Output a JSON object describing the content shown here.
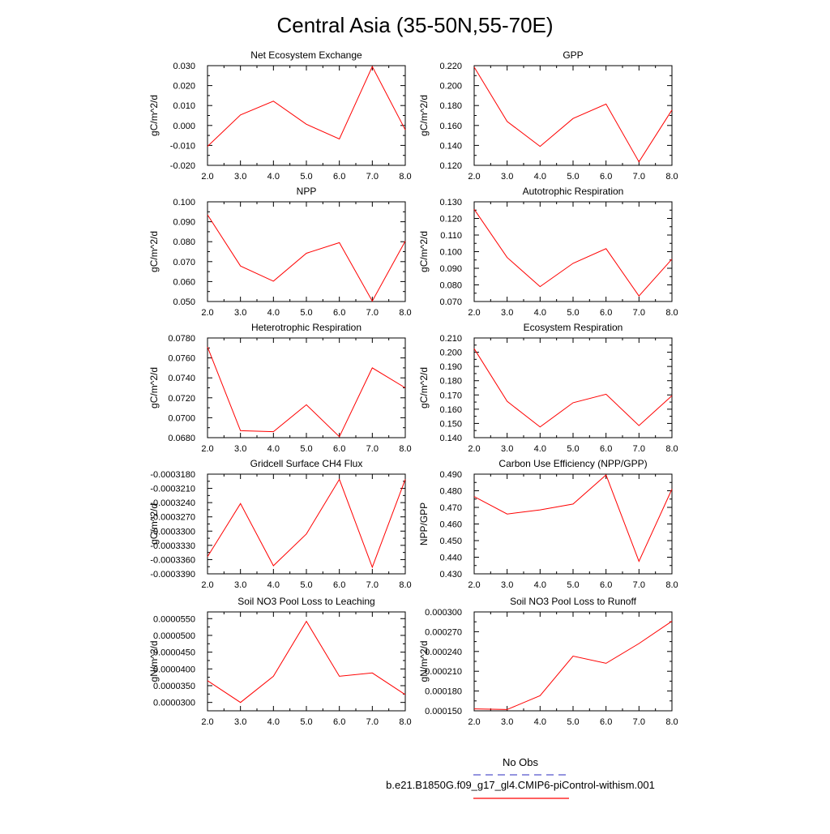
{
  "title": "Central Asia (35-50N,55-70E)",
  "colors": {
    "series": "#ff0000",
    "obs": "#5555cc",
    "axis": "#000000"
  },
  "legend": {
    "obs_label": "No Obs",
    "model_label": "b.e21.B1850G.f09_g17_gl4.CMIP6-piControl-withism.001"
  },
  "chart_data": [
    {
      "type": "line",
      "title": "Net Ecosystem Exchange",
      "ylabel": "gC/m^2/d",
      "x": [
        2.0,
        3.0,
        4.0,
        5.0,
        6.0,
        7.0,
        8.0
      ],
      "x_ticks": [
        "2.0",
        "3.0",
        "4.0",
        "5.0",
        "6.0",
        "7.0",
        "8.0"
      ],
      "xlim": [
        2.0,
        8.0
      ],
      "ylim": [
        -0.02,
        0.03
      ],
      "y_ticks": [
        -0.02,
        -0.01,
        0.0,
        0.01,
        0.02,
        0.03
      ],
      "y_tick_labels": [
        "-0.020",
        "-0.010",
        "0.000",
        "0.010",
        "0.020",
        "0.030"
      ],
      "values": [
        -0.0105,
        0.0053,
        0.0122,
        0.0006,
        -0.0068,
        0.0295,
        -0.0022
      ]
    },
    {
      "type": "line",
      "title": "GPP",
      "ylabel": "gC/m^2/d",
      "x": [
        2.0,
        3.0,
        4.0,
        5.0,
        6.0,
        7.0,
        8.0
      ],
      "x_ticks": [
        "2.0",
        "3.0",
        "4.0",
        "5.0",
        "6.0",
        "7.0",
        "8.0"
      ],
      "xlim": [
        2.0,
        8.0
      ],
      "ylim": [
        0.12,
        0.22
      ],
      "y_ticks": [
        0.12,
        0.14,
        0.16,
        0.18,
        0.2,
        0.22
      ],
      "y_tick_labels": [
        "0.120",
        "0.140",
        "0.160",
        "0.180",
        "0.200",
        "0.220"
      ],
      "values": [
        0.2185,
        0.164,
        0.139,
        0.167,
        0.1815,
        0.1235,
        0.1755
      ]
    },
    {
      "type": "line",
      "title": "NPP",
      "ylabel": "gC/m^2/d",
      "x": [
        2.0,
        3.0,
        4.0,
        5.0,
        6.0,
        7.0,
        8.0
      ],
      "x_ticks": [
        "2.0",
        "3.0",
        "4.0",
        "5.0",
        "6.0",
        "7.0",
        "8.0"
      ],
      "xlim": [
        2.0,
        8.0
      ],
      "ylim": [
        0.05,
        0.1
      ],
      "y_ticks": [
        0.05,
        0.06,
        0.07,
        0.08,
        0.09,
        0.1
      ],
      "y_tick_labels": [
        "0.050",
        "0.060",
        "0.070",
        "0.080",
        "0.090",
        "0.100"
      ],
      "values": [
        0.0935,
        0.0678,
        0.0602,
        0.0742,
        0.0795,
        0.0502,
        0.0803
      ]
    },
    {
      "type": "line",
      "title": "Autotrophic Respiration",
      "ylabel": "gC/m^2/d",
      "x": [
        2.0,
        3.0,
        4.0,
        5.0,
        6.0,
        7.0,
        8.0
      ],
      "x_ticks": [
        "2.0",
        "3.0",
        "4.0",
        "5.0",
        "6.0",
        "7.0",
        "8.0"
      ],
      "xlim": [
        2.0,
        8.0
      ],
      "ylim": [
        0.07,
        0.13
      ],
      "y_ticks": [
        0.07,
        0.08,
        0.09,
        0.1,
        0.11,
        0.12,
        0.13
      ],
      "y_tick_labels": [
        "0.070",
        "0.080",
        "0.090",
        "0.100",
        "0.110",
        "0.120",
        "0.130"
      ],
      "values": [
        0.1255,
        0.0965,
        0.079,
        0.093,
        0.1018,
        0.0733,
        0.0955
      ]
    },
    {
      "type": "line",
      "title": "Heterotrophic Respiration",
      "ylabel": "gC/m^2/d",
      "x": [
        2.0,
        3.0,
        4.0,
        5.0,
        6.0,
        7.0,
        8.0
      ],
      "x_ticks": [
        "2.0",
        "3.0",
        "4.0",
        "5.0",
        "6.0",
        "7.0",
        "8.0"
      ],
      "xlim": [
        2.0,
        8.0
      ],
      "ylim": [
        0.068,
        0.078
      ],
      "y_ticks": [
        0.068,
        0.07,
        0.072,
        0.074,
        0.076,
        0.078
      ],
      "y_tick_labels": [
        "0.0680",
        "0.0700",
        "0.0720",
        "0.0740",
        "0.0760",
        "0.0780"
      ],
      "values": [
        0.0771,
        0.0687,
        0.0686,
        0.0713,
        0.0681,
        0.075,
        0.073
      ]
    },
    {
      "type": "line",
      "title": "Ecosystem Respiration",
      "ylabel": "gC/m^2/d",
      "x": [
        2.0,
        3.0,
        4.0,
        5.0,
        6.0,
        7.0,
        8.0
      ],
      "x_ticks": [
        "2.0",
        "3.0",
        "4.0",
        "5.0",
        "6.0",
        "7.0",
        "8.0"
      ],
      "xlim": [
        2.0,
        8.0
      ],
      "ylim": [
        0.14,
        0.21
      ],
      "y_ticks": [
        0.14,
        0.15,
        0.16,
        0.17,
        0.18,
        0.19,
        0.2,
        0.21
      ],
      "y_tick_labels": [
        "0.140",
        "0.150",
        "0.160",
        "0.170",
        "0.180",
        "0.190",
        "0.200",
        "0.210"
      ],
      "values": [
        0.2025,
        0.1655,
        0.1475,
        0.1645,
        0.1705,
        0.1485,
        0.1695
      ]
    },
    {
      "type": "line",
      "title": "Gridcell Surface CH4 Flux",
      "ylabel": "gC/m^2/d",
      "x": [
        2.0,
        3.0,
        4.0,
        5.0,
        6.0,
        7.0,
        8.0
      ],
      "x_ticks": [
        "2.0",
        "3.0",
        "4.0",
        "5.0",
        "6.0",
        "7.0",
        "8.0"
      ],
      "xlim": [
        2.0,
        8.0
      ],
      "ylim": [
        -0.000339,
        -0.000318
      ],
      "y_ticks": [
        -0.000339,
        -0.000336,
        -0.000333,
        -0.00033,
        -0.000327,
        -0.000324,
        -0.000321,
        -0.000318
      ],
      "y_tick_labels": [
        "-0.0003390",
        "-0.0003360",
        "-0.0003330",
        "-0.0003300",
        "-0.0003270",
        "-0.0003240",
        "-0.0003210",
        "-0.0003180"
      ],
      "values": [
        -0.0003354,
        -0.0003242,
        -0.0003373,
        -0.0003306,
        -0.0003191,
        -0.0003376,
        -0.0003191
      ]
    },
    {
      "type": "line",
      "title": "Carbon Use Efficiency (NPP/GPP)",
      "ylabel": "NPP/GPP",
      "x": [
        2.0,
        3.0,
        4.0,
        5.0,
        6.0,
        7.0,
        8.0
      ],
      "x_ticks": [
        "2.0",
        "3.0",
        "4.0",
        "5.0",
        "6.0",
        "7.0",
        "8.0"
      ],
      "xlim": [
        2.0,
        8.0
      ],
      "ylim": [
        0.43,
        0.49
      ],
      "y_ticks": [
        0.43,
        0.44,
        0.45,
        0.46,
        0.47,
        0.48,
        0.49
      ],
      "y_tick_labels": [
        "0.430",
        "0.440",
        "0.450",
        "0.460",
        "0.470",
        "0.480",
        "0.490"
      ],
      "values": [
        0.4765,
        0.466,
        0.4685,
        0.472,
        0.4895,
        0.4375,
        0.481
      ]
    },
    {
      "type": "line",
      "title": "Soil NO3 Pool Loss to Leaching",
      "ylabel": "gN/m^2/d",
      "x": [
        2.0,
        3.0,
        4.0,
        5.0,
        6.0,
        7.0,
        8.0
      ],
      "x_ticks": [
        "2.0",
        "3.0",
        "4.0",
        "5.0",
        "6.0",
        "7.0",
        "8.0"
      ],
      "xlim": [
        2.0,
        8.0
      ],
      "ylim": [
        2.75e-05,
        5.7e-05
      ],
      "y_ticks": [
        3e-05,
        3.5e-05,
        4e-05,
        4.5e-05,
        5e-05,
        5.5e-05
      ],
      "y_tick_labels": [
        "0.0000300",
        "0.0000350",
        "0.0000400",
        "0.0000450",
        "0.0000500",
        "0.0000550"
      ],
      "values": [
        3.65e-05,
        3e-05,
        3.78e-05,
        5.42e-05,
        3.78e-05,
        3.88e-05,
        3.23e-05
      ]
    },
    {
      "type": "line",
      "title": "Soil NO3 Pool Loss to Runoff",
      "ylabel": "gN/m^2/d",
      "x": [
        2.0,
        3.0,
        4.0,
        5.0,
        6.0,
        7.0,
        8.0
      ],
      "x_ticks": [
        "2.0",
        "3.0",
        "4.0",
        "5.0",
        "6.0",
        "7.0",
        "8.0"
      ],
      "xlim": [
        2.0,
        8.0
      ],
      "ylim": [
        0.00015,
        0.0003
      ],
      "y_ticks": [
        0.00015,
        0.00018,
        0.00021,
        0.00024,
        0.00027,
        0.0003
      ],
      "y_tick_labels": [
        "0.000150",
        "0.000180",
        "0.000210",
        "0.000240",
        "0.000270",
        "0.000300"
      ],
      "values": [
        0.000153,
        0.000152,
        0.000173,
        0.000233,
        0.000222,
        0.000252,
        0.000286
      ]
    }
  ]
}
